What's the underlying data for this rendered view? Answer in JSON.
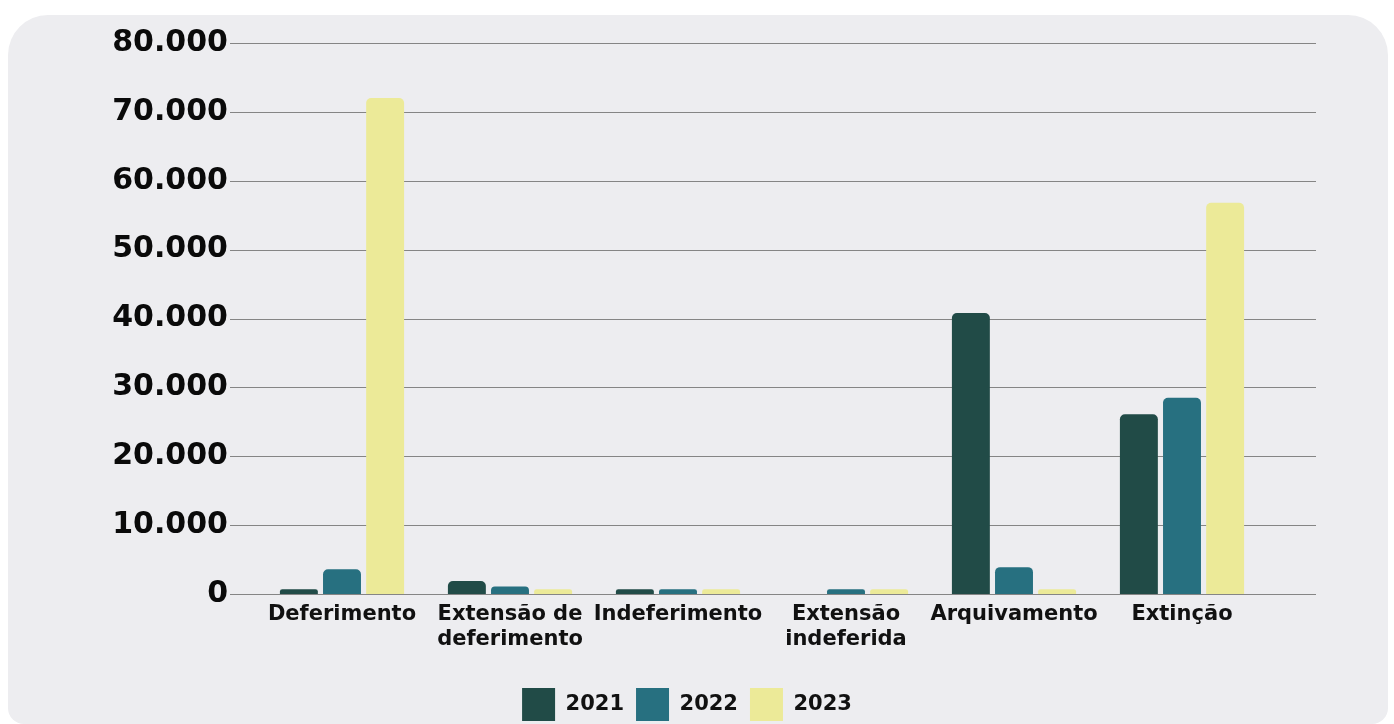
{
  "chart_data": {
    "type": "bar",
    "categories": [
      "Deferimento",
      "Extensão de deferimento",
      "Indeferimento",
      "Extensão indeferida",
      "Arquivamento",
      "Extinção"
    ],
    "series": [
      {
        "name": "2021",
        "color": "#214b47",
        "values": [
          700,
          1900,
          700,
          0,
          40800,
          26100
        ]
      },
      {
        "name": "2022",
        "color": "#277080",
        "values": [
          3600,
          1100,
          700,
          700,
          3900,
          28500
        ]
      },
      {
        "name": "2023",
        "color": "#ecea98",
        "values": [
          72000,
          700,
          700,
          700,
          700,
          56800
        ]
      }
    ],
    "ylim": [
      0,
      80000
    ],
    "yticks": [
      0,
      {
        "value": 10000,
        "label": "10.000"
      },
      {
        "value": 20000,
        "label": "20.000"
      },
      {
        "value": 30000,
        "label": "30.000"
      },
      {
        "value": 40000,
        "label": "40.000"
      },
      {
        "value": 50000,
        "label": "50.000"
      },
      {
        "value": 60000,
        "label": "60.000"
      },
      {
        "value": 70000,
        "label": "70.000"
      },
      {
        "value": 80000,
        "label": "80.000"
      }
    ],
    "grid": "y",
    "legend": "bottom"
  }
}
